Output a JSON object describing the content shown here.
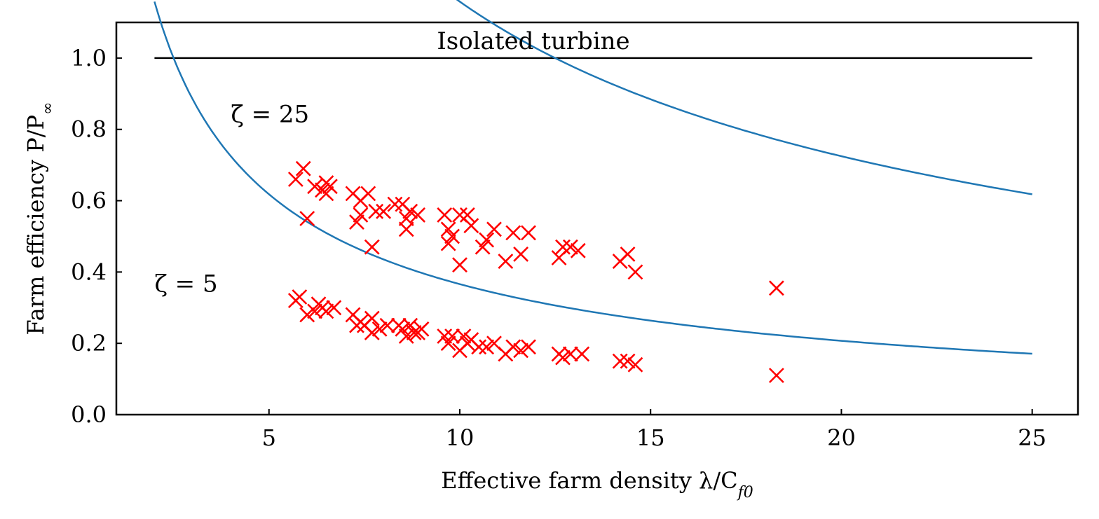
{
  "chart_data": {
    "type": "scatter",
    "xlabel": "Effective farm density λ/C",
    "xlabel_sub": "f0",
    "ylabel": "Farm efficiency P/P",
    "ylabel_sub": "∞",
    "xlim": [
      1,
      26.2
    ],
    "ylim": [
      0,
      1.1
    ],
    "x_ticks": [
      5,
      10,
      15,
      20,
      25
    ],
    "y_ticks": [
      0.0,
      0.2,
      0.4,
      0.6,
      0.8,
      1.0
    ],
    "x_tick_labels": [
      "5",
      "10",
      "15",
      "20",
      "25"
    ],
    "y_tick_labels": [
      "0.0",
      "0.2",
      "0.4",
      "0.6",
      "0.8",
      "1.0"
    ],
    "grid": false,
    "annotations": [
      {
        "text": "Isolated turbine",
        "x": 9.4,
        "y": 1.025
      },
      {
        "text": "ζ = 25",
        "x": 4.0,
        "y": 0.82
      },
      {
        "text": "ζ = 5",
        "x": 2.0,
        "y": 0.345
      }
    ],
    "lines": [
      {
        "id": "isolated",
        "color": "#000000",
        "x": [
          2,
          25
        ],
        "y": [
          1.0,
          1.0
        ]
      },
      {
        "id": "zeta25",
        "color": "#1f77b4",
        "model": "zeta",
        "zeta": 25,
        "xrange": [
          2,
          25
        ]
      },
      {
        "id": "zeta5",
        "color": "#1f77b4",
        "model": "zeta",
        "zeta": 5,
        "xrange": [
          2,
          25
        ]
      }
    ],
    "scatter_color": "#ff0000",
    "scatter_series": [
      {
        "points": [
          [
            5.7,
            0.66
          ],
          [
            5.9,
            0.69
          ],
          [
            6.0,
            0.55
          ],
          [
            6.2,
            0.64
          ],
          [
            6.4,
            0.63
          ],
          [
            6.5,
            0.62
          ],
          [
            6.5,
            0.65
          ],
          [
            6.6,
            0.64
          ],
          [
            7.2,
            0.62
          ],
          [
            7.3,
            0.54
          ],
          [
            7.4,
            0.56
          ],
          [
            7.4,
            0.6
          ],
          [
            7.6,
            0.62
          ],
          [
            7.7,
            0.47
          ],
          [
            7.8,
            0.57
          ],
          [
            8.0,
            0.57
          ],
          [
            8.3,
            0.59
          ],
          [
            8.5,
            0.59
          ],
          [
            8.6,
            0.55
          ],
          [
            8.6,
            0.52
          ],
          [
            8.7,
            0.57
          ],
          [
            8.9,
            0.56
          ],
          [
            9.6,
            0.56
          ],
          [
            9.7,
            0.52
          ],
          [
            9.7,
            0.48
          ],
          [
            9.8,
            0.5
          ],
          [
            10.0,
            0.42
          ],
          [
            10.0,
            0.56
          ],
          [
            10.2,
            0.56
          ],
          [
            10.3,
            0.53
          ],
          [
            10.6,
            0.47
          ],
          [
            10.7,
            0.49
          ],
          [
            10.9,
            0.52
          ],
          [
            11.2,
            0.43
          ],
          [
            11.4,
            0.51
          ],
          [
            11.6,
            0.45
          ],
          [
            11.8,
            0.51
          ],
          [
            12.6,
            0.44
          ],
          [
            12.7,
            0.47
          ],
          [
            12.9,
            0.47
          ],
          [
            13.1,
            0.46
          ],
          [
            14.2,
            0.43
          ],
          [
            14.4,
            0.45
          ],
          [
            14.6,
            0.4
          ],
          [
            18.3,
            0.355
          ]
        ]
      },
      {
        "points": [
          [
            5.7,
            0.32
          ],
          [
            5.8,
            0.33
          ],
          [
            6.0,
            0.28
          ],
          [
            6.2,
            0.29
          ],
          [
            6.3,
            0.31
          ],
          [
            6.4,
            0.3
          ],
          [
            6.5,
            0.29
          ],
          [
            6.7,
            0.3
          ],
          [
            7.2,
            0.28
          ],
          [
            7.3,
            0.25
          ],
          [
            7.4,
            0.26
          ],
          [
            7.5,
            0.25
          ],
          [
            7.7,
            0.27
          ],
          [
            7.7,
            0.23
          ],
          [
            7.9,
            0.24
          ],
          [
            8.1,
            0.25
          ],
          [
            8.4,
            0.25
          ],
          [
            8.5,
            0.24
          ],
          [
            8.6,
            0.22
          ],
          [
            8.7,
            0.25
          ],
          [
            8.8,
            0.23
          ],
          [
            8.9,
            0.23
          ],
          [
            9.0,
            0.24
          ],
          [
            9.6,
            0.22
          ],
          [
            9.7,
            0.2
          ],
          [
            9.8,
            0.22
          ],
          [
            10.0,
            0.18
          ],
          [
            10.1,
            0.22
          ],
          [
            10.2,
            0.2
          ],
          [
            10.3,
            0.21
          ],
          [
            10.5,
            0.19
          ],
          [
            10.7,
            0.19
          ],
          [
            10.9,
            0.2
          ],
          [
            11.2,
            0.17
          ],
          [
            11.4,
            0.19
          ],
          [
            11.6,
            0.18
          ],
          [
            11.8,
            0.19
          ],
          [
            12.6,
            0.17
          ],
          [
            12.7,
            0.16
          ],
          [
            12.9,
            0.17
          ],
          [
            13.2,
            0.17
          ],
          [
            14.2,
            0.15
          ],
          [
            14.4,
            0.15
          ],
          [
            14.6,
            0.14
          ],
          [
            18.3,
            0.11
          ]
        ]
      }
    ]
  }
}
